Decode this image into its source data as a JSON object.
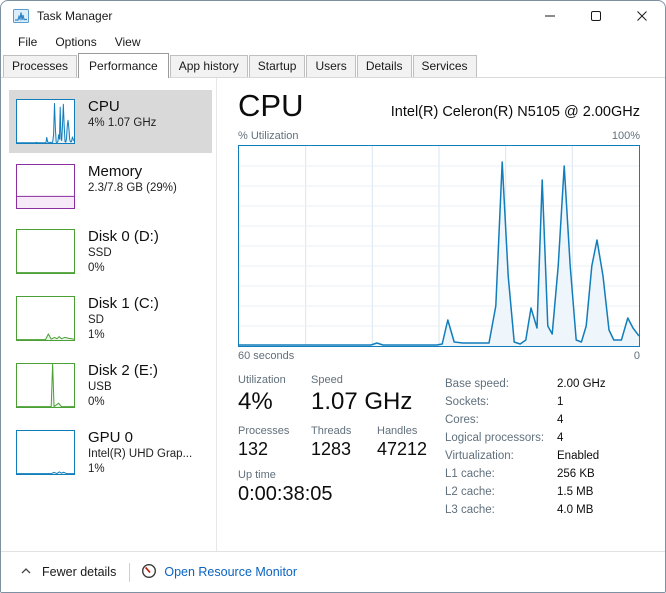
{
  "window": {
    "title": "Task Manager"
  },
  "menu": {
    "items": [
      "File",
      "Options",
      "View"
    ]
  },
  "tabs": {
    "active": "Performance",
    "items": [
      "Processes",
      "Performance",
      "App history",
      "Startup",
      "Users",
      "Details",
      "Services"
    ]
  },
  "sidebar": {
    "items": [
      {
        "id": "cpu",
        "title": "CPU",
        "lines": [
          "4% 1.07 GHz"
        ]
      },
      {
        "id": "memory",
        "title": "Memory",
        "lines": [
          "2.3/7.8 GB (29%)"
        ]
      },
      {
        "id": "disk0",
        "title": "Disk 0 (D:)",
        "lines": [
          "SSD",
          "0%"
        ]
      },
      {
        "id": "disk1",
        "title": "Disk 1 (C:)",
        "lines": [
          "SD",
          "1%"
        ]
      },
      {
        "id": "disk2",
        "title": "Disk 2 (E:)",
        "lines": [
          "USB",
          "0%"
        ]
      },
      {
        "id": "gpu0",
        "title": "GPU 0",
        "lines": [
          "Intel(R) UHD Grap...",
          "1%"
        ]
      }
    ]
  },
  "main": {
    "title": "CPU",
    "subtitle": "Intel(R) Celeron(R) N5105 @ 2.00GHz",
    "axis_top_left": "% Utilization",
    "axis_top_right": "100%",
    "axis_bottom_left": "60 seconds",
    "axis_bottom_right": "0",
    "stats": {
      "utilization": {
        "label": "Utilization",
        "value": "4%"
      },
      "speed": {
        "label": "Speed",
        "value": "1.07 GHz"
      },
      "processes": {
        "label": "Processes",
        "value": "132"
      },
      "threads": {
        "label": "Threads",
        "value": "1283"
      },
      "handles": {
        "label": "Handles",
        "value": "47212"
      },
      "uptime": {
        "label": "Up time",
        "value": "0:00:38:05"
      }
    },
    "details": {
      "rows": [
        {
          "label": "Base speed:",
          "value": "2.00 GHz"
        },
        {
          "label": "Sockets:",
          "value": "1"
        },
        {
          "label": "Cores:",
          "value": "4"
        },
        {
          "label": "Logical processors:",
          "value": "4"
        },
        {
          "label": "Virtualization:",
          "value": "Enabled"
        },
        {
          "label": "L1 cache:",
          "value": "256 KB"
        },
        {
          "label": "L2 cache:",
          "value": "1.5 MB"
        },
        {
          "label": "L3 cache:",
          "value": "4.0 MB"
        }
      ]
    }
  },
  "footer": {
    "fewer_details": "Fewer details",
    "resource_monitor": "Open Resource Monitor"
  },
  "colors": {
    "link": "#0a63c0",
    "selection": "#d9d9d9",
    "cpu": "#117dbb",
    "memory": "#8b2fa0",
    "disk": "#4aa035",
    "gpu": "#117dbb"
  },
  "chart_data": {
    "type": "area",
    "title": "% Utilization",
    "series_name": "CPU utilization over last 60 seconds",
    "xlabel_left": "60 seconds",
    "xlabel_right": "0",
    "ylim": [
      0,
      100
    ],
    "unit": "%",
    "grid": "on",
    "points": [
      [
        0,
        0.5
      ],
      [
        0.33,
        0.5
      ],
      [
        0.345,
        1.5
      ],
      [
        0.36,
        0.5
      ],
      [
        0.495,
        0.5
      ],
      [
        0.508,
        1
      ],
      [
        0.522,
        13
      ],
      [
        0.538,
        2
      ],
      [
        0.56,
        1.5
      ],
      [
        0.625,
        1.5
      ],
      [
        0.642,
        20
      ],
      [
        0.658,
        92
      ],
      [
        0.673,
        35
      ],
      [
        0.688,
        2
      ],
      [
        0.703,
        1
      ],
      [
        0.717,
        3
      ],
      [
        0.73,
        19
      ],
      [
        0.745,
        9
      ],
      [
        0.758,
        83
      ],
      [
        0.772,
        10
      ],
      [
        0.783,
        6
      ],
      [
        0.798,
        40
      ],
      [
        0.813,
        90
      ],
      [
        0.828,
        40
      ],
      [
        0.843,
        3
      ],
      [
        0.856,
        2
      ],
      [
        0.868,
        10
      ],
      [
        0.882,
        40
      ],
      [
        0.895,
        53
      ],
      [
        0.91,
        35
      ],
      [
        0.925,
        8
      ],
      [
        0.937,
        3
      ],
      [
        0.956,
        3
      ],
      [
        0.972,
        14
      ],
      [
        0.985,
        9
      ],
      [
        1,
        5
      ]
    ]
  },
  "charts": {
    "main": {
      "color": "#117dbb",
      "fill": "#eef5fb",
      "border": "#117dbb",
      "lw": 1.5,
      "grid": {
        "v": 6,
        "h": 10,
        "vcolor": "#d9e5f0",
        "hcolor": "#e9f0f7"
      }
    },
    "thumb_cpu": {
      "color": "#117dbb",
      "fill": "#e7f1f9",
      "border": "#117dbb",
      "lw": 1
    },
    "thumb_mem": {
      "color": "#8b2fa0",
      "fill": "#f6eaf8",
      "border": "#8b2fa0",
      "lw": 1,
      "points": [
        [
          0,
          27
        ],
        [
          1,
          27
        ]
      ]
    },
    "thumb_disk0": {
      "color": "#4aa035",
      "fill": "none",
      "border": "#4aa035",
      "lw": 1,
      "points": [
        [
          0,
          0.8
        ],
        [
          1,
          0.8
        ]
      ]
    },
    "thumb_disk1": {
      "color": "#4aa035",
      "fill": "#ecf5e9",
      "border": "#4aa035",
      "lw": 1,
      "points": [
        [
          0,
          0.8
        ],
        [
          0.5,
          0.8
        ],
        [
          0.55,
          14
        ],
        [
          0.6,
          2
        ],
        [
          0.66,
          6
        ],
        [
          0.7,
          3
        ],
        [
          0.74,
          8
        ],
        [
          0.78,
          3
        ],
        [
          0.84,
          6
        ],
        [
          0.9,
          4
        ],
        [
          1,
          2
        ]
      ]
    },
    "thumb_disk2": {
      "color": "#4aa035",
      "fill": "#ecf5e9",
      "border": "#4aa035",
      "lw": 1,
      "points": [
        [
          0,
          0.8
        ],
        [
          0.6,
          0.8
        ],
        [
          0.625,
          100
        ],
        [
          0.65,
          0.8
        ],
        [
          0.73,
          9
        ],
        [
          0.78,
          0.8
        ],
        [
          1,
          0.8
        ]
      ]
    },
    "thumb_gpu": {
      "color": "#117dbb",
      "fill": "#e7f1f9",
      "border": "#117dbb",
      "lw": 1,
      "points": [
        [
          0,
          0.8
        ],
        [
          0.6,
          0.8
        ],
        [
          0.65,
          4
        ],
        [
          0.7,
          1
        ],
        [
          0.74,
          5
        ],
        [
          0.78,
          2
        ],
        [
          0.82,
          4
        ],
        [
          0.87,
          1
        ],
        [
          1,
          1
        ]
      ]
    }
  }
}
